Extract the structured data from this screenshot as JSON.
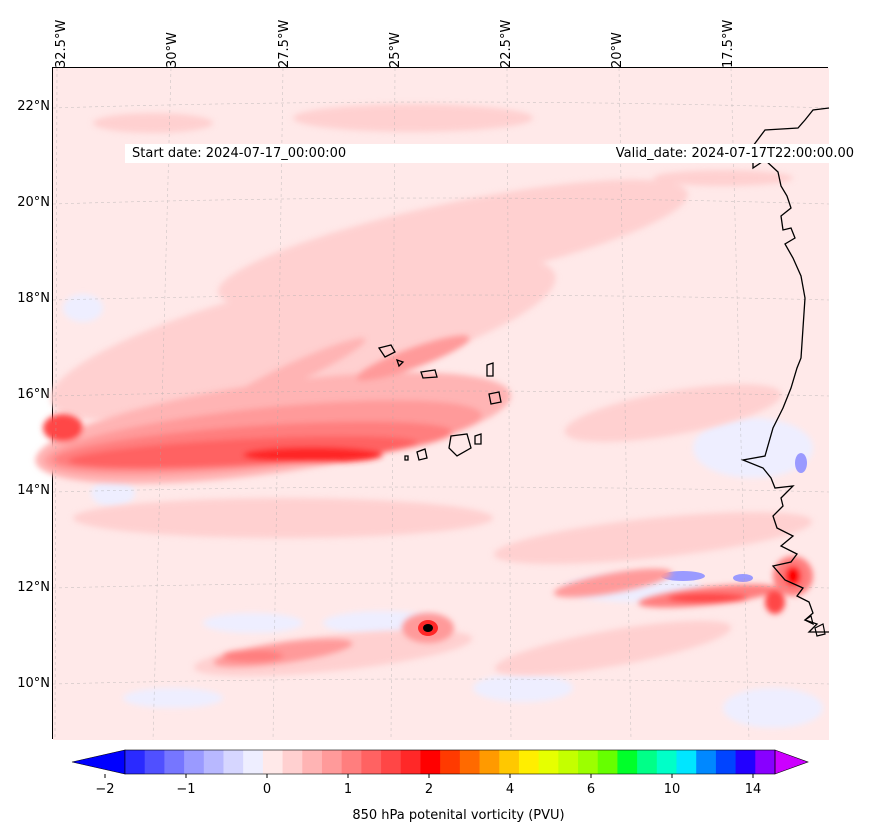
{
  "map": {
    "start_date": "Start date: 2024-07-17_00:00:00",
    "valid_date": "Valid_date: 2024-07-17T22:00:00.00",
    "lon_labels": [
      "32.5°W",
      "30°W",
      "27.5°W",
      "25°W",
      "22.5°W",
      "20°W",
      "17.5°W"
    ],
    "lat_labels": [
      "22°N",
      "20°N",
      "18°N",
      "16°N",
      "14°N",
      "12°N",
      "10°N"
    ],
    "field": "850 hPa potential vorticity",
    "features": [
      "Cape Verde islands",
      "West African coastline",
      "positive PV band near 15°N",
      "PV maximum near 11°N"
    ]
  },
  "colorbar": {
    "label": "850 hPa potenital vorticity (PVU)",
    "tick_labels": [
      "−2",
      "−1",
      "0",
      "1",
      "2",
      "4",
      "6",
      "10",
      "14"
    ],
    "colors": [
      "#0000ff",
      "#2a2aff",
      "#5050ff",
      "#7676ff",
      "#9a9aff",
      "#b8b8ff",
      "#d6d6ff",
      "#eeeeff",
      "#ffe9e9",
      "#ffd0d0",
      "#ffb4b4",
      "#ff9a9a",
      "#ff7e7e",
      "#ff6262",
      "#ff4646",
      "#ff2828",
      "#ff0000",
      "#ff3a00",
      "#ff6a00",
      "#ff9a00",
      "#ffc800",
      "#ffee00",
      "#e6ff00",
      "#c4ff00",
      "#9cff00",
      "#66ff00",
      "#00ff2a",
      "#00ff88",
      "#00ffc8",
      "#00e6ff",
      "#0088ff",
      "#0044ff",
      "#2200ff",
      "#8800ff",
      "#cc00ff"
    ]
  }
}
